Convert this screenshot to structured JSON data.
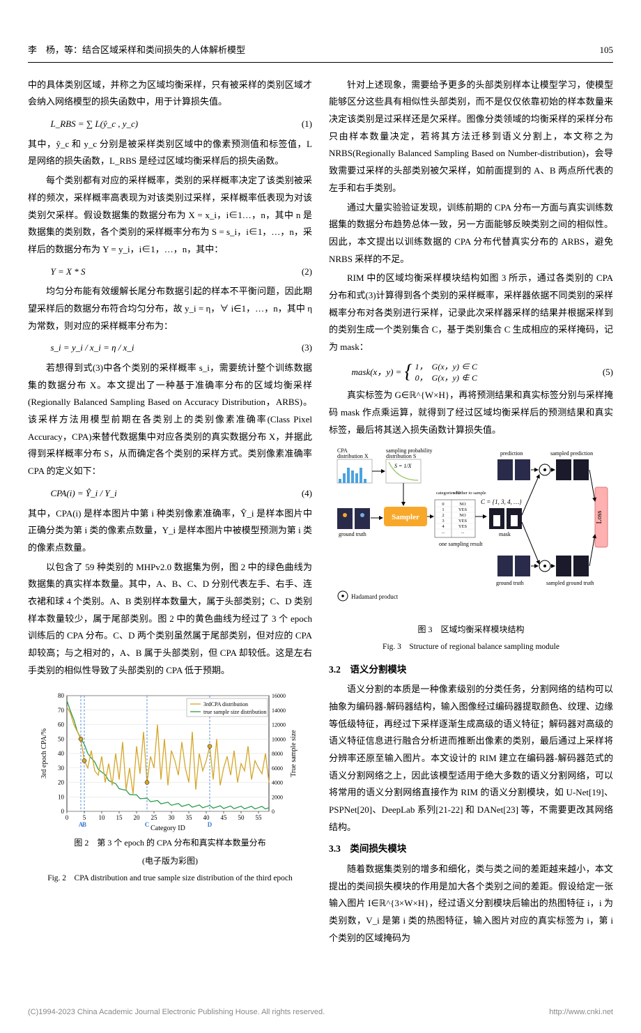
{
  "header": {
    "authors_title": "李　杨，等：结合区域采样和类间损失的人体解析模型",
    "page_num": "105"
  },
  "left_col": {
    "p1": "中的具体类别区域，并称之为区域均衡采样，只有被采样的类别区域才会纳入网络模型的损失函数中，用于计算损失值。",
    "eq1": "L_RBS = ∑ L(ŷ_c , y_c)",
    "eq1_num": "(1)",
    "p2": "其中，ŷ_c 和 y_c 分别是被采样类别区域中的像素预测值和标签值，L 是网络的损失函数，L_RBS 是经过区域均衡采样后的损失函数。",
    "p3": "每个类别都有对应的采样概率，类别的采样概率决定了该类别被采样的频次，采样概率高表现为对该类别过采样，采样概率低表现为对该类别欠采样。假设数据集的数据分布为 X = x_i，i∈1…，n，其中 n 是数据集的类别数，各个类别的采样概率分布为 S = s_i，i∈1，…，n，采样后的数据分布为 Y = y_i，i∈1，…，n，其中：",
    "eq2": "Y = X * S",
    "eq2_num": "(2)",
    "p4": "均匀分布能有效缓解长尾分布数据引起的样本不平衡问题，因此期望采样后的数据分布符合均匀分布，故 y_i = η，∀ i∈1，…，n，其中 η 为常数，则对应的采样概率分布为：",
    "eq3": "s_i = y_i / x_i = η / x_i",
    "eq3_num": "(3)",
    "p5": "若想得到式(3)中各个类别的采样概率 s_i，需要统计整个训练数据集的数据分布 X。本文提出了一种基于准确率分布的区域均衡采样(Regionally Balanced Sampling Based on Accuracy Distribution，ARBS)。该采样方法用模型前期在各类别上的类别像素准确率(Class Pixel Accuracy，CPA)来替代数据集中对应各类别的真实数据分布 X，并据此得到采样概率分布 S，从而确定各个类别的采样方式。类别像素准确率CPA 的定义如下：",
    "eq4": "CPA(i) = Ŷ_i / Y_i",
    "eq4_num": "(4)",
    "p6": "其中，CPA(i) 是样本图片中第 i 种类别像素准确率，Ŷ_i 是样本图片中正确分类为第 i 类的像素点数量，Y_i 是样本图片中被模型预测为第 i 类的像素点数量。",
    "p7": "以包含了 59 种类别的 MHPv2.0 数据集为例，图 2 中的绿色曲线为数据集的真实样本数量。其中，A、B、C、D 分别代表左手、右手、连衣裙和球 4 个类别。A、B 类别样本数量大，属于头部类别；C、D 类别样本数量较少，属于尾部类别。图 2 中的黄色曲线为经过了 3 个 epoch 训练后的 CPA 分布。C、D 两个类别虽然属于尾部类别，但对应的 CPA 却较高；与之相对的，A、B 属于头部类别，但 CPA 却较低。这是左右手类别的相似性导致了头部类别的 CPA 低于预期。",
    "fig2": {
      "cap_cn": "图 2　第 3 个 epoch 的 CPA 分布和真实样本数量分布",
      "cap_note": "(电子版为彩图)",
      "cap_en": "Fig. 2　CPA distribution and true sample size distribution of the third epoch",
      "legend1": "3rdCPA distribution",
      "legend2": "true sample size distribution",
      "xlabel": "Category ID",
      "ylabel_left": "3rd epoch CPA/%",
      "ylabel_right": "True sample size",
      "left_ticks": [
        0,
        10,
        20,
        30,
        40,
        50,
        60,
        70,
        80
      ],
      "right_ticks": [
        0,
        2000,
        4000,
        6000,
        8000,
        10000,
        12000,
        14000,
        16000
      ],
      "x_ticks": [
        0,
        5,
        10,
        15,
        20,
        25,
        30,
        35,
        40,
        45,
        50,
        55
      ],
      "markers": [
        "A",
        "B",
        "C",
        "D"
      ],
      "cpa_color": "#d4a628",
      "true_color": "#2e9c4f",
      "marker_color": "#3a7ad1",
      "grid_color": "#dddddd",
      "background_color": "#ffffff"
    }
  },
  "right_col": {
    "p1": "针对上述现象，需要给予更多的头部类别样本让模型学习，使模型能够区分这些具有相似性头部类别，而不是仅仅依靠初始的样本数量来决定该类别是过采样还是欠采样。图像分类领域的均衡采样的采样分布只由样本数量决定，若将其方法迁移到语义分割上，本文称之为 NRBS(Regionally Balanced Sampling Based on Number-distribution)，会导致需要过采样的头部类别被欠采样，如前面提到的 A、B 两点所代表的左手和右手类别。",
    "p2": "通过大量实验验证发现，训练前期的 CPA 分布一方面与真实训练数据集的数据分布趋势总体一致，另一方面能够反映类别之间的相似性。因此，本文提出以训练数据的 CPA 分布代替真实分布的 ARBS，避免 NRBS 采样的不足。",
    "p3": "RIM 中的区域均衡采样模块结构如图 3 所示，通过各类别的 CPA 分布和式(3)计算得到各个类别的采样概率，采样器依据不同类别的采样概率分布对各类别进行采样，记录此次采样器采样的结果并根据采样到的类别生成一个类别集合 C，基于类别集合 C 生成相应的采样掩码，记为 mask：",
    "eq5_lhs": "mask(x，y) = ",
    "eq5_case1": "1，　G(x，y) ∈ C",
    "eq5_case2": "0，　G(x，y) ∉ C",
    "eq5_num": "(5)",
    "p4": "真实标签为 G∈ℝ^{W×H}，再将预测结果和真实标签分别与采样掩码 mask 作点乘运算，就得到了经过区域均衡采样后的预测结果和真实标签，最后将其送入损失函数计算损失值。",
    "fig3": {
      "cap_cn": "图 3　区域均衡采样模块结构",
      "cap_en": "Fig. 3　Structure of regional balance sampling module",
      "label_cpa_x": "CPA",
      "label_dist_x": "distribution X",
      "label_sprob": "sampling probability",
      "label_dist_s": "distribution S",
      "label_s_eq": "S = 1/X",
      "label_ground_truth": "ground truth",
      "label_sampler": "Sampler",
      "label_one_sampling": "one sampling result",
      "label_categories": "categories ID",
      "label_whether": "whether to sample",
      "table_rows": [
        [
          "0",
          "NO"
        ],
        [
          "1",
          "YES"
        ],
        [
          "2",
          "NO"
        ],
        [
          "3",
          "YES"
        ],
        [
          "4",
          "YES"
        ],
        [
          "...",
          "..."
        ]
      ],
      "label_cset": "C = {1, 3, 4, …}",
      "label_prediction": "prediction",
      "label_sampled_pred": "sampled prediction",
      "label_mask": "mask",
      "label_loss": "Loss",
      "label_ground_truth2": "ground truth",
      "label_sampled_gt": "sampled ground truth",
      "label_hadamard": "Hadamard product",
      "sampler_color": "#f7a82a",
      "arrow_color": "#000000",
      "loss_color": "#ffb0b0",
      "chart_color1": "#4aa3df",
      "chart_color2": "#8cc152"
    },
    "sec32_title": "3.2　语义分割模块",
    "p5": "语义分割的本质是一种像素级别的分类任务，分割网络的结构可以抽象为编码器-解码器结构，输入图像经过编码器提取颜色、纹理、边缘等低级特征，再经过下采样逐渐生成高级的语义特征；解码器对高级的语义特征信息进行融合分析进而推断出像素的类别，最后通过上采样将分辨率还原至输入图片。本文设计的 RIM 建立在编码器-解码器范式的语义分割网络之上，因此该模型适用于绝大多数的语义分割网络，可以将常用的语义分割网络直接作为 RIM 的语义分割模块，如 U-Net[19]、PSPNet[20]、DeepLab 系列[21-22] 和 DANet[23] 等，不需要更改其网络结构。",
    "sec33_title": "3.3　类间损失模块",
    "p6": "随着数据集类别的增多和细化，类与类之间的差距越来越小，本文提出的类间损失模块的作用是加大各个类别之间的差距。假设给定一张输入图片 I∈ℝ^{3×W×H}，经过语义分割模块后输出的热图特征 i，i 为类别数，V_i 是第 i 类的热图特征，输入图片对应的真实标签为 i，第 i 个类别的区域掩码为"
  },
  "footer": {
    "left": "(C)1994-2023 China Academic Journal Electronic Publishing House. All rights reserved.",
    "right": "http://www.cnki.net"
  }
}
